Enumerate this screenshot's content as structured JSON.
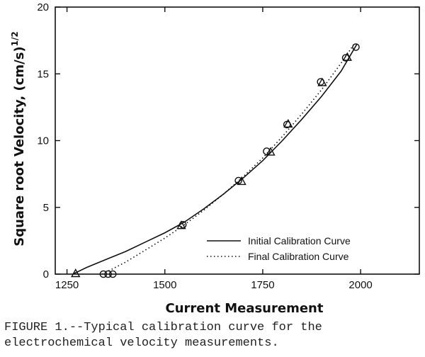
{
  "chart_data": {
    "type": "scatter",
    "xlabel": "Current Measurement",
    "ylabel": "Square root Velocity, (cm/s)",
    "ylabel_exponent": "1/2",
    "xlim": [
      1220,
      2150
    ],
    "ylim": [
      0,
      20
    ],
    "x_ticks": [
      "1250",
      "1500",
      "1750",
      "2000"
    ],
    "x_tick_values": [
      1250,
      1500,
      1750,
      2000
    ],
    "y_ticks": [
      "0",
      "5",
      "10",
      "15",
      "20"
    ],
    "y_tick_values": [
      0,
      5,
      10,
      15,
      20
    ],
    "grid": false,
    "legend_position": "bottom-right",
    "series": [
      {
        "name": "Initial Calibration Curve",
        "kind": "line",
        "style": "solid",
        "x": [
          1265,
          1300,
          1350,
          1400,
          1450,
          1500,
          1550,
          1600,
          1650,
          1700,
          1750,
          1800,
          1850,
          1900,
          1950,
          1990
        ],
        "y": [
          0,
          0.5,
          1.1,
          1.7,
          2.4,
          3.1,
          3.9,
          4.9,
          6.0,
          7.2,
          8.5,
          10.0,
          11.6,
          13.3,
          15.2,
          17.2
        ]
      },
      {
        "name": "Final Calibration Curve",
        "kind": "line",
        "style": "dotted",
        "x": [
          1340,
          1400,
          1450,
          1500,
          1550,
          1600,
          1650,
          1700,
          1750,
          1800,
          1850,
          1900,
          1950,
          1985
        ],
        "y": [
          0,
          0.9,
          1.8,
          2.7,
          3.7,
          4.8,
          6.0,
          7.3,
          8.7,
          10.3,
          12.0,
          13.8,
          15.8,
          17.3
        ]
      },
      {
        "kind": "points",
        "marker": "circle",
        "x": [
          1343,
          1355,
          1367,
          1546,
          1688,
          1760,
          1812,
          1898,
          1962,
          1988
        ],
        "y": [
          0,
          0,
          0,
          3.7,
          7.0,
          9.2,
          11.2,
          14.4,
          16.2,
          17.0
        ]
      },
      {
        "kind": "points",
        "marker": "triangle",
        "x": [
          1272,
          1542,
          1696,
          1770,
          1815,
          1902,
          1966
        ],
        "y": [
          0,
          3.6,
          6.9,
          9.1,
          11.2,
          14.3,
          16.2
        ]
      }
    ]
  },
  "caption": "FIGURE 1.--Typical calibration curve for the\nelectrochemical velocity measurements."
}
